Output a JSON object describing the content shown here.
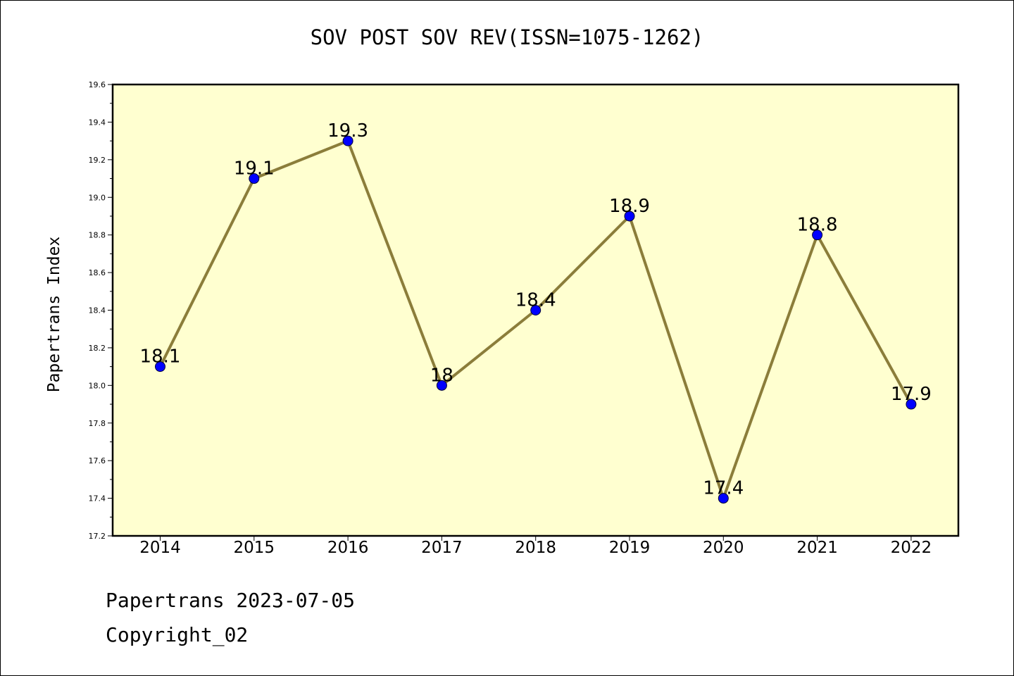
{
  "chart_data": {
    "type": "line",
    "title": "SOV POST SOV REV(ISSN=1075-1262)",
    "xlabel": "",
    "ylabel": "Papertrans Index",
    "categories": [
      "2014",
      "2015",
      "2016",
      "2017",
      "2018",
      "2019",
      "2020",
      "2021",
      "2022"
    ],
    "values": [
      18.1,
      19.1,
      19.3,
      18.0,
      18.4,
      18.9,
      17.4,
      18.8,
      17.9
    ],
    "data_labels": [
      "18.1",
      "19.1",
      "19.3",
      "18",
      "18.4",
      "18.9",
      "17.4",
      "18.8",
      "17.9"
    ],
    "ylim": [
      17.2,
      19.6
    ],
    "yticks": [
      "17.2",
      "17.4",
      "17.6",
      "17.8",
      "18.0",
      "18.2",
      "18.4",
      "18.6",
      "18.8",
      "19.0",
      "19.2",
      "19.4",
      "19.6"
    ],
    "grid": false,
    "colors": {
      "plot_background": "#ffffd0",
      "line": "#8b7d3a",
      "marker": "#0000ff"
    }
  },
  "footer": {
    "line1": "Papertrans 2023-07-05",
    "line2": "Copyright_02"
  }
}
